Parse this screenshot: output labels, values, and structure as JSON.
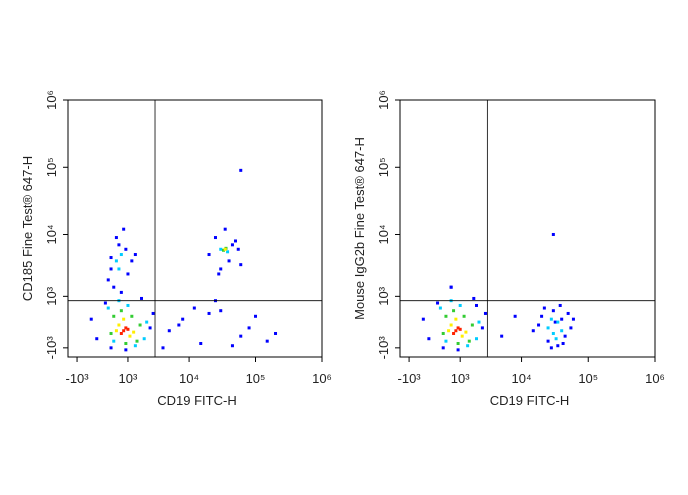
{
  "chart_data": [
    {
      "type": "scatter",
      "scale": "biexponential",
      "xlabel": "CD19 FITC-H",
      "ylabel": "CD185 Fine Test® 647-H",
      "xlim": [
        -1500,
        1000000
      ],
      "ylim": [
        -1500,
        1000000
      ],
      "xticks": [
        {
          "value": -1000,
          "label": "-10³"
        },
        {
          "value": 1000,
          "label": "10³"
        },
        {
          "value": 10000,
          "label": "10⁴"
        },
        {
          "value": 100000,
          "label": "10⁵"
        },
        {
          "value": 1000000,
          "label": "10⁶"
        }
      ],
      "yticks": [
        {
          "value": -1000,
          "label": "-10³"
        },
        {
          "value": 1000,
          "label": "10³"
        },
        {
          "value": 10000,
          "label": "10⁴"
        },
        {
          "value": 100000,
          "label": "10⁵"
        },
        {
          "value": 1000000,
          "label": "10⁶"
        }
      ],
      "gates": {
        "x": 3000,
        "y": 800
      },
      "series": [
        {
          "color": "#0000ff",
          "x": [
            100,
            2500,
            -200,
            1800,
            300,
            2800,
            900,
            -400,
            300,
            900,
            500,
            1200,
            200,
            800,
            400,
            1000,
            600,
            1400,
            700,
            300,
            20000,
            45000,
            30000,
            55000,
            25000,
            40000,
            35000,
            60000,
            28000,
            50000,
            5000,
            8000,
            15000,
            30000,
            60000,
            100000,
            20000,
            7000,
            12000,
            45000,
            150000,
            4000,
            80000,
            25000,
            60000,
            200000
          ],
          "y": [
            700,
            -200,
            -600,
            900,
            -1000,
            300,
            -1100,
            100,
            3000,
            6000,
            9000,
            4000,
            2000,
            12000,
            1500,
            2500,
            7000,
            5000,
            1200,
            4500,
            5000,
            7000,
            3000,
            6000,
            9000,
            4000,
            12000,
            3500,
            2500,
            8000,
            -300,
            100,
            -800,
            400,
            -500,
            200,
            300,
            -100,
            500,
            -900,
            -700,
            -1000,
            -200,
            800,
            90000,
            -400
          ]
        },
        {
          "color": "#00ccff",
          "x": [
            200,
            2000,
            600,
            1400,
            1000,
            2200,
            400,
            500,
            700,
            600,
            30000,
            38000
          ],
          "y": [
            500,
            -600,
            800,
            -900,
            600,
            0,
            -700,
            4000,
            5000,
            3000,
            6000,
            5500
          ]
        },
        {
          "color": "#33cc33",
          "x": [
            400,
            1500,
            700,
            1200,
            900,
            300,
            1700,
            33000,
            36000
          ],
          "y": [
            200,
            -700,
            400,
            200,
            -800,
            -400,
            -100,
            5800,
            6200
          ]
        },
        {
          "color": "#ffee00",
          "x": [
            600,
            1100,
            800,
            1300,
            500,
            35000
          ],
          "y": [
            -100,
            -500,
            100,
            -350,
            -300,
            6000
          ]
        },
        {
          "color": "#ff2200",
          "x": [
            800,
            900,
            700,
            1000
          ],
          "y": [
            -300,
            -200,
            -400,
            -250
          ]
        }
      ]
    },
    {
      "type": "scatter",
      "scale": "biexponential",
      "xlabel": "CD19 FITC-H",
      "ylabel": "Mouse IgG2b Fine Test® 647-H",
      "xlim": [
        -1500,
        1000000
      ],
      "ylim": [
        -1500,
        1000000
      ],
      "xticks": [
        {
          "value": -1000,
          "label": "-10³"
        },
        {
          "value": 1000,
          "label": "10³"
        },
        {
          "value": 10000,
          "label": "10⁴"
        },
        {
          "value": 100000,
          "label": "10⁵"
        },
        {
          "value": 1000000,
          "label": "10⁶"
        }
      ],
      "yticks": [
        {
          "value": -1000,
          "label": "-10³"
        },
        {
          "value": 1000,
          "label": "10³"
        },
        {
          "value": 10000,
          "label": "10⁴"
        },
        {
          "value": 100000,
          "label": "10⁵"
        },
        {
          "value": 1000000,
          "label": "10⁶"
        }
      ],
      "gates": {
        "x": 3000,
        "y": 800
      },
      "series": [
        {
          "color": "#0000ff",
          "x": [
            100,
            2500,
            -200,
            1800,
            300,
            2800,
            900,
            -400,
            600,
            2000,
            15000,
            20000,
            25000,
            30000,
            35000,
            40000,
            45000,
            50000,
            18000,
            28000,
            38000,
            55000,
            22000,
            32000,
            42000,
            60000,
            30000,
            600,
            5000,
            8000
          ],
          "y": [
            700,
            -200,
            -600,
            900,
            -1000,
            300,
            -1100,
            100,
            1500,
            600,
            -300,
            200,
            -700,
            400,
            -900,
            100,
            -500,
            300,
            -100,
            -1000,
            600,
            -200,
            500,
            0,
            -800,
            100,
            10000,
            1500,
            -500,
            200
          ]
        },
        {
          "color": "#00ccff",
          "x": [
            200,
            2000,
            600,
            1400,
            1000,
            2200,
            400,
            25000,
            30000,
            35000,
            40000,
            28000,
            33000
          ],
          "y": [
            500,
            -600,
            800,
            -900,
            600,
            0,
            -700,
            -200,
            -400,
            0,
            -300,
            100,
            -600
          ]
        },
        {
          "color": "#33cc33",
          "x": [
            400,
            1500,
            700,
            1200,
            900,
            300,
            1700
          ],
          "y": [
            200,
            -700,
            400,
            200,
            -800,
            -400,
            -100
          ]
        },
        {
          "color": "#ffee00",
          "x": [
            600,
            1100,
            800,
            1300,
            500
          ],
          "y": [
            -100,
            -500,
            100,
            -350,
            -300
          ]
        },
        {
          "color": "#ff2200",
          "x": [
            800,
            900,
            700,
            1000
          ],
          "y": [
            -300,
            -200,
            -400,
            -250
          ]
        }
      ]
    }
  ]
}
